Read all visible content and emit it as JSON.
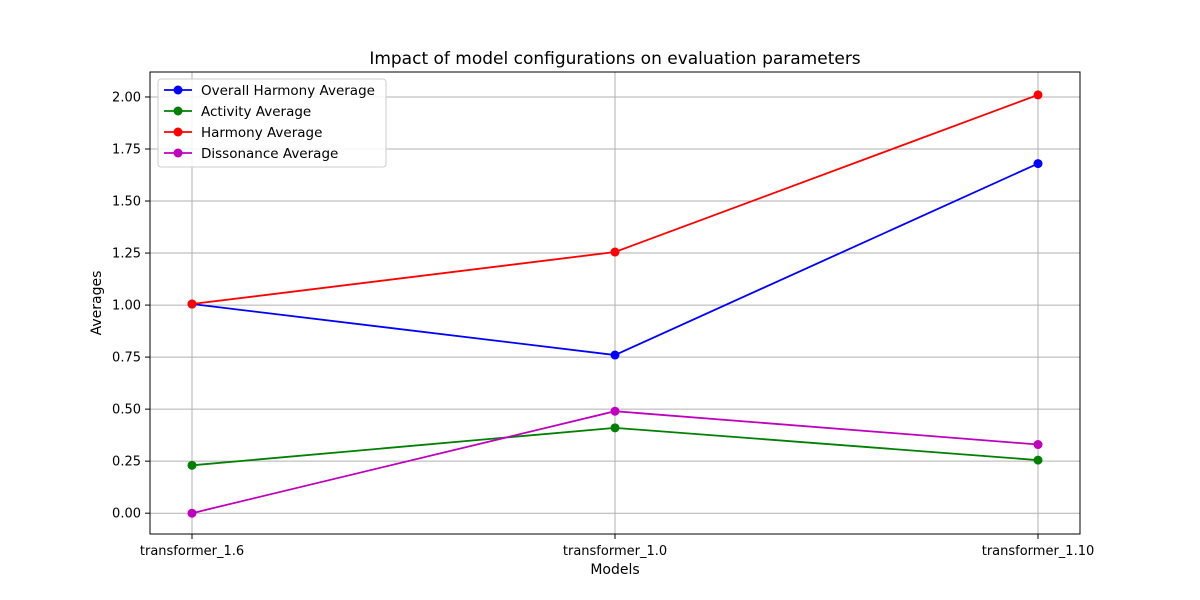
{
  "chart_data": {
    "type": "line",
    "title": "Impact of model configurations on evaluation parameters",
    "xlabel": "Models",
    "ylabel": "Averages",
    "categories": [
      "transformer_1.6",
      "transformer_1.0",
      "transformer_1.10"
    ],
    "ylim": [
      -0.1,
      2.12
    ],
    "yticks": [
      0.0,
      0.25,
      0.5,
      0.75,
      1.0,
      1.25,
      1.5,
      1.75,
      2.0
    ],
    "ytick_labels": [
      "0.00",
      "0.25",
      "0.50",
      "0.75",
      "1.00",
      "1.25",
      "1.50",
      "1.75",
      "2.00"
    ],
    "grid": true,
    "legend_position": "top-left",
    "series": [
      {
        "name": "Overall Harmony Average",
        "color": "#0000ff",
        "values": [
          1.005,
          0.76,
          1.68
        ]
      },
      {
        "name": "Activity Average",
        "color": "#008000",
        "values": [
          0.23,
          0.41,
          0.255
        ]
      },
      {
        "name": "Harmony Average",
        "color": "#ff0000",
        "values": [
          1.005,
          1.255,
          2.01
        ]
      },
      {
        "name": "Dissonance Average",
        "color": "#bf00bf",
        "values": [
          0.0,
          0.49,
          0.33
        ]
      }
    ]
  }
}
